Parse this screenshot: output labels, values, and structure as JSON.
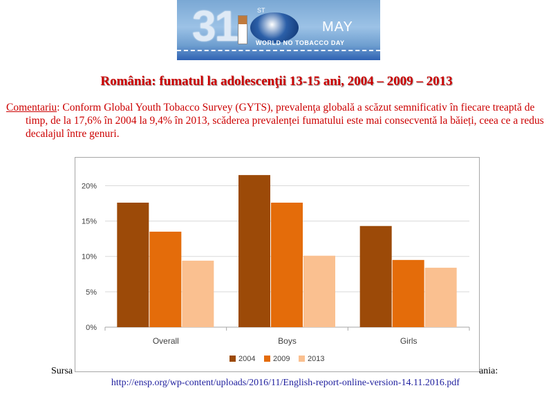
{
  "banner": {
    "number": "31",
    "superscript": "ST",
    "month": "MAY",
    "caption": "WORLD NO TOBACCO DAY"
  },
  "title": "România: fumatul la adolescenţii 13-15 ani, 2004 – 2009 – 2013",
  "comment": {
    "label": "Comentariu",
    "text": ": Conform Global Youth Tobacco Survey (GYTS), prevalenţa globală a scăzut semnificativ în fiecare treaptă de timp, de la 17,6% în 2004  la 9,4% în 2013, scăderea prevalenței fumatului este mai consecventă la băieți, ceea ce a redus decalajul între genuri."
  },
  "source": {
    "prefix": "Sursa",
    "suffix": "ania:",
    "url": "http://ensp.org/wp-content/uploads/2016/11/English-report-online-version-14.11.2016.pdf"
  },
  "chart_data": {
    "type": "bar",
    "categories": [
      "Overall",
      "Boys",
      "Girls"
    ],
    "series": [
      {
        "name": "2004",
        "color": "#9c4a08",
        "values": [
          17.6,
          21.5,
          14.3
        ]
      },
      {
        "name": "2009",
        "color": "#e46c0a",
        "values": [
          13.5,
          17.6,
          9.5
        ]
      },
      {
        "name": "2013",
        "color": "#fac090",
        "values": [
          9.4,
          10.1,
          8.4
        ]
      }
    ],
    "ylim": [
      0,
      22
    ],
    "yticks": [
      0,
      5,
      10,
      15,
      20
    ],
    "ytick_labels": [
      "0%",
      "5%",
      "10%",
      "15%",
      "20%"
    ],
    "grid": true,
    "legend": "bottom"
  }
}
